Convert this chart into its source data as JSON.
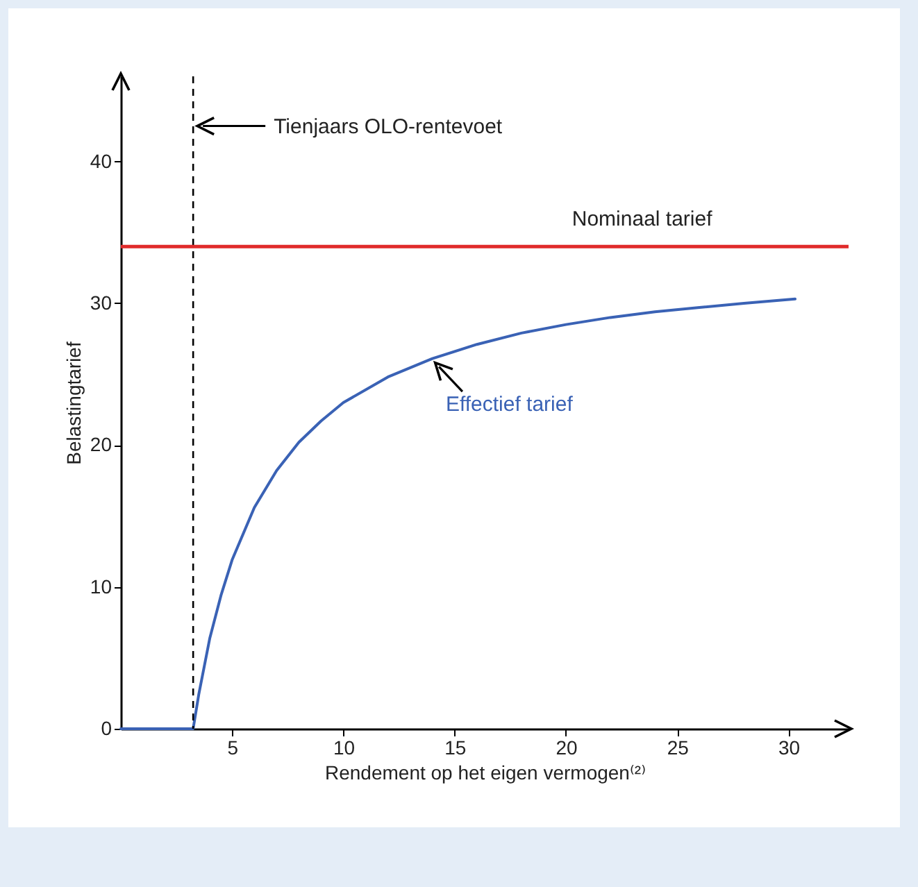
{
  "chart_data": {
    "type": "line",
    "xlabel": "Rendement op het eigen vermogen⁽²⁾",
    "ylabel": "Belastingtarief",
    "xlim": [
      0,
      32.7
    ],
    "ylim": [
      0,
      46
    ],
    "xticks": [
      5,
      10,
      15,
      20,
      25,
      30
    ],
    "yticks": [
      0,
      10,
      20,
      30,
      40
    ],
    "grid": false,
    "series": [
      {
        "name": "Effectief tarief",
        "color": "#3a62b5",
        "x": [
          0,
          3.25,
          3.5,
          4,
          4.5,
          5,
          6,
          7,
          8,
          9,
          10,
          12,
          14,
          16,
          18,
          20,
          22,
          24,
          26,
          28,
          30.3
        ],
        "values": [
          0,
          0,
          2.4,
          6.4,
          9.4,
          11.9,
          15.6,
          18.2,
          20.2,
          21.7,
          23,
          24.8,
          26.1,
          27.1,
          27.9,
          28.5,
          29,
          29.4,
          29.7,
          30,
          30.3
        ]
      }
    ],
    "ref_lines": [
      {
        "axis": "x",
        "value": 3.25,
        "label": "Tienjaars OLO-rentevoet",
        "color": "#000000",
        "line_style": "dashed"
      },
      {
        "axis": "y",
        "value": 34,
        "label": "Nominaal tarief",
        "color": "#e02b2b",
        "line_style": "solid"
      }
    ]
  }
}
